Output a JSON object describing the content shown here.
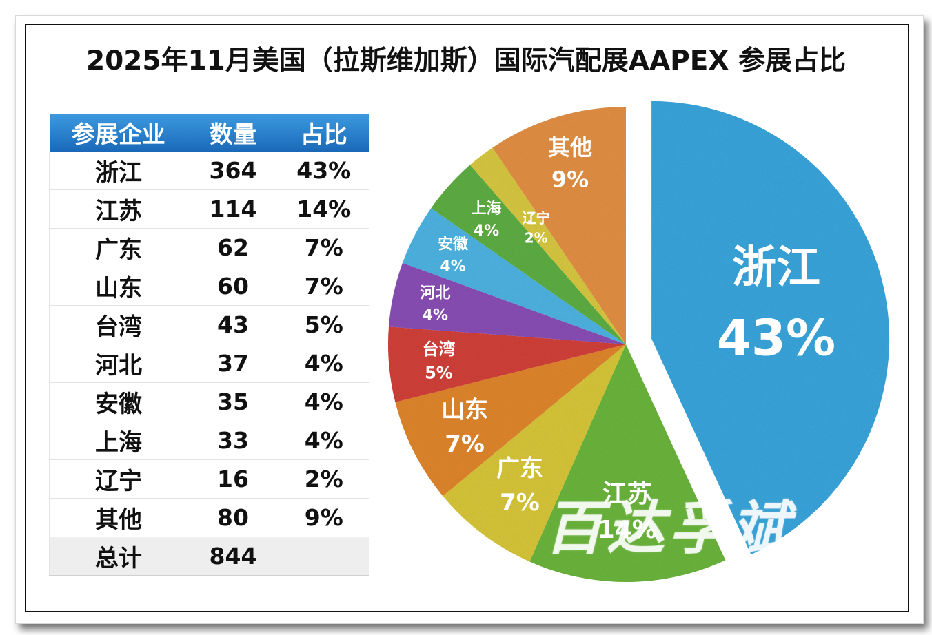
{
  "title": "2025年11月美国（拉斯维加斯）国际汽配展AAPEX 参展占比",
  "table": {
    "headers": [
      "参展企业",
      "数量",
      "占比"
    ],
    "rows": [
      {
        "name": "浙江",
        "count": "364",
        "pct": "43%"
      },
      {
        "name": "江苏",
        "count": "114",
        "pct": "14%"
      },
      {
        "name": "广东",
        "count": "62",
        "pct": "7%"
      },
      {
        "name": "山东",
        "count": "60",
        "pct": "7%"
      },
      {
        "name": "台湾",
        "count": "43",
        "pct": "5%"
      },
      {
        "name": "河北",
        "count": "37",
        "pct": "4%"
      },
      {
        "name": "安徽",
        "count": "35",
        "pct": "4%"
      },
      {
        "name": "上海",
        "count": "33",
        "pct": "4%"
      },
      {
        "name": "辽宁",
        "count": "16",
        "pct": "2%"
      },
      {
        "name": "其他",
        "count": "80",
        "pct": "9%"
      }
    ],
    "total": {
      "name": "总计",
      "count": "844",
      "pct": ""
    }
  },
  "chart_data": {
    "type": "pie",
    "categories": [
      "浙江",
      "江苏",
      "广东",
      "山东",
      "台湾",
      "河北",
      "安徽",
      "上海",
      "辽宁",
      "其他"
    ],
    "values": [
      364,
      114,
      62,
      60,
      43,
      37,
      35,
      33,
      16,
      80
    ],
    "labels": [
      "43%",
      "14%",
      "7%",
      "7%",
      "5%",
      "4%",
      "4%",
      "4%",
      "2%",
      "9%"
    ],
    "colors": [
      "#3aa6dc",
      "#6cb63c",
      "#d8c63a",
      "#e0862e",
      "#d2433a",
      "#8a4fb6",
      "#4fb4e2",
      "#5fae45",
      "#d8c842",
      "#e39044"
    ],
    "exploded": "浙江"
  },
  "watermark": "百达孚斌",
  "colors": {
    "header_bg": "#2a7fcb",
    "title": "#111111"
  }
}
